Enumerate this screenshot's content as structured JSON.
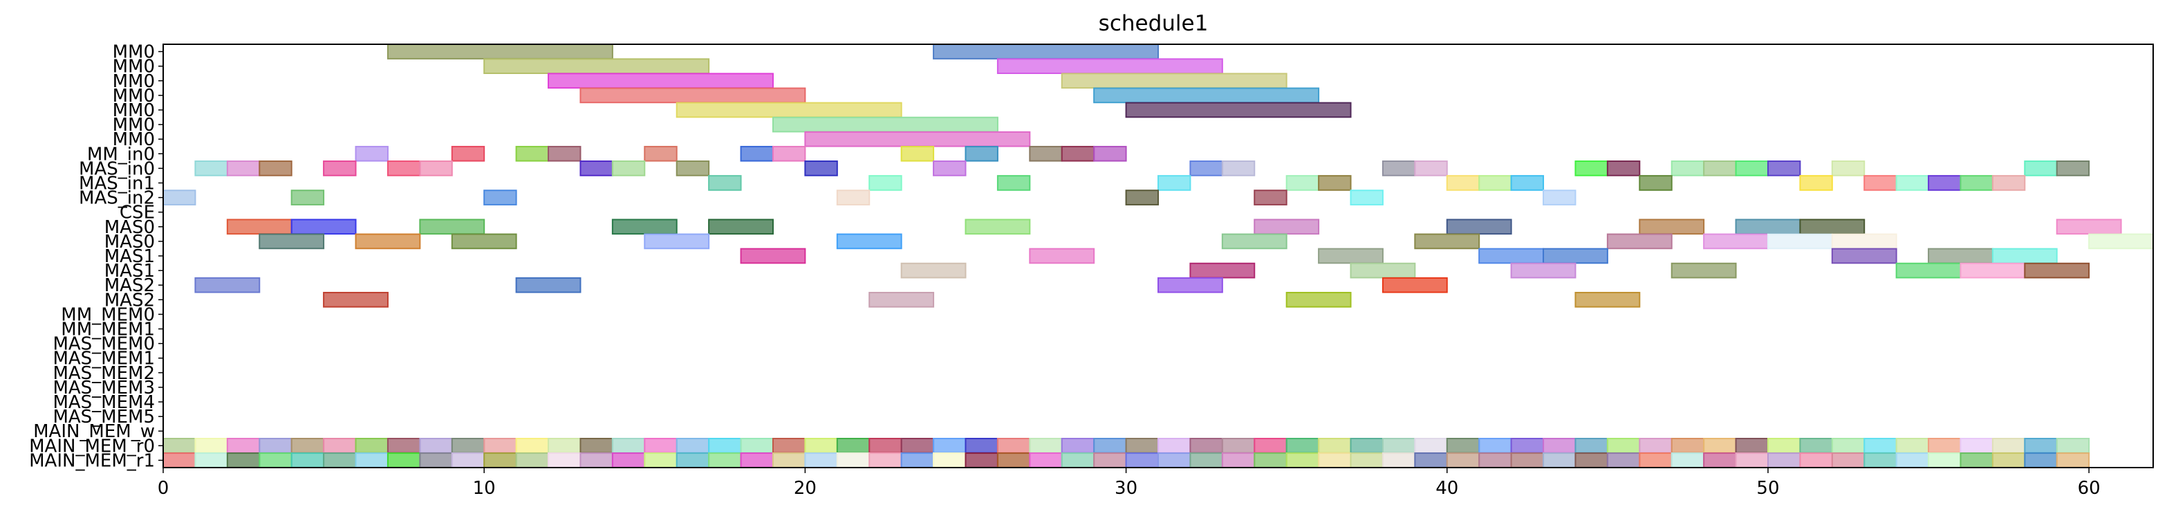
{
  "chart_data": {
    "type": "gantt",
    "title": "schedule1",
    "xlabel": "",
    "ylabel": "",
    "xlim": [
      0,
      62
    ],
    "x_ticks": [
      0,
      10,
      20,
      30,
      40,
      50,
      60
    ],
    "grid": false,
    "rows": [
      "MM0",
      "MM0",
      "MM0",
      "MM0",
      "MM0",
      "MM0",
      "MM0",
      "MM_in0",
      "MAS_in0",
      "MAS_in1",
      "MAS_in2",
      "CSE",
      "MAS0",
      "MAS0",
      "MAS1",
      "MAS1",
      "MAS2",
      "MAS2",
      "MM_MEM0",
      "MM_MEM1",
      "MAS_MEM0",
      "MAS_MEM1",
      "MAS_MEM2",
      "MAS_MEM3",
      "MAS_MEM4",
      "MAS_MEM5",
      "MAIN_MEM_w",
      "MAIN_MEM_r0",
      "MAIN_MEM_r1"
    ],
    "bars": [
      {
        "row": 0,
        "start": 7,
        "end": 14,
        "color": "#8e9a5b"
      },
      {
        "row": 0,
        "start": 24,
        "end": 31,
        "color": "#4f7fc8"
      },
      {
        "row": 1,
        "start": 10,
        "end": 17,
        "color": "#b5c06a"
      },
      {
        "row": 1,
        "start": 26,
        "end": 33,
        "color": "#d45ce8"
      },
      {
        "row": 2,
        "start": 12,
        "end": 19,
        "color": "#e040d8"
      },
      {
        "row": 2,
        "start": 28,
        "end": 35,
        "color": "#c8c878"
      },
      {
        "row": 3,
        "start": 13,
        "end": 20,
        "color": "#e86868"
      },
      {
        "row": 3,
        "start": 29,
        "end": 36,
        "color": "#40a0d0"
      },
      {
        "row": 4,
        "start": 16,
        "end": 23,
        "color": "#e0d860"
      },
      {
        "row": 4,
        "start": 30,
        "end": 37,
        "color": "#502858"
      },
      {
        "row": 5,
        "start": 19,
        "end": 26,
        "color": "#90e0a0"
      },
      {
        "row": 6,
        "start": 20,
        "end": 27,
        "color": "#e068c8"
      },
      {
        "row": 7,
        "start": 6,
        "end": 7,
        "color": "#b090f0"
      },
      {
        "row": 7,
        "start": 9,
        "end": 10,
        "color": "#e84860"
      },
      {
        "row": 7,
        "start": 11,
        "end": 12,
        "color": "#88d040"
      },
      {
        "row": 7,
        "start": 12,
        "end": 13,
        "color": "#985868"
      },
      {
        "row": 7,
        "start": 15,
        "end": 16,
        "color": "#d87060"
      },
      {
        "row": 7,
        "start": 18,
        "end": 19,
        "color": "#3868d8"
      },
      {
        "row": 7,
        "start": 19,
        "end": 20,
        "color": "#e878c0"
      },
      {
        "row": 7,
        "start": 23,
        "end": 24,
        "color": "#e0e040"
      },
      {
        "row": 7,
        "start": 25,
        "end": 26,
        "color": "#3890c0"
      },
      {
        "row": 7,
        "start": 27,
        "end": 28,
        "color": "#887860"
      },
      {
        "row": 7,
        "start": 28,
        "end": 29,
        "color": "#903050"
      },
      {
        "row": 7,
        "start": 29,
        "end": 30,
        "color": "#b050c0"
      },
      {
        "row": 8,
        "start": 1,
        "end": 2,
        "color": "#90d8d8"
      },
      {
        "row": 8,
        "start": 2,
        "end": 3,
        "color": "#d888d0"
      },
      {
        "row": 8,
        "start": 3,
        "end": 4,
        "color": "#a06840"
      },
      {
        "row": 8,
        "start": 5,
        "end": 6,
        "color": "#e84898"
      },
      {
        "row": 8,
        "start": 7,
        "end": 8,
        "color": "#f05078"
      },
      {
        "row": 8,
        "start": 8,
        "end": 9,
        "color": "#f088b0"
      },
      {
        "row": 8,
        "start": 13,
        "end": 14,
        "color": "#5028c8"
      },
      {
        "row": 8,
        "start": 14,
        "end": 15,
        "color": "#a0d890"
      },
      {
        "row": 8,
        "start": 16,
        "end": 17,
        "color": "#889058"
      },
      {
        "row": 8,
        "start": 20,
        "end": 21,
        "color": "#3030c0"
      },
      {
        "row": 8,
        "start": 24,
        "end": 25,
        "color": "#c070e0"
      },
      {
        "row": 8,
        "start": 32,
        "end": 33,
        "color": "#6080e0"
      },
      {
        "row": 8,
        "start": 33,
        "end": 34,
        "color": "#b8b8d8"
      },
      {
        "row": 8,
        "start": 38,
        "end": 39,
        "color": "#9090a0"
      },
      {
        "row": 8,
        "start": 39,
        "end": 40,
        "color": "#d8a8d0"
      },
      {
        "row": 8,
        "start": 44,
        "end": 45,
        "color": "#40f040"
      },
      {
        "row": 8,
        "start": 45,
        "end": 46,
        "color": "#782850"
      },
      {
        "row": 8,
        "start": 47,
        "end": 48,
        "color": "#98e8a8"
      },
      {
        "row": 8,
        "start": 48,
        "end": 49,
        "color": "#a0c888"
      },
      {
        "row": 8,
        "start": 49,
        "end": 50,
        "color": "#50e870"
      },
      {
        "row": 8,
        "start": 50,
        "end": 51,
        "color": "#5840c8"
      },
      {
        "row": 8,
        "start": 52,
        "end": 53,
        "color": "#d0e8a8"
      },
      {
        "row": 8,
        "start": 58,
        "end": 59,
        "color": "#60f0c0"
      },
      {
        "row": 8,
        "start": 59,
        "end": 60,
        "color": "#708068"
      },
      {
        "row": 9,
        "start": 17,
        "end": 18,
        "color": "#60c8a8"
      },
      {
        "row": 9,
        "start": 22,
        "end": 23,
        "color": "#80f8c8"
      },
      {
        "row": 9,
        "start": 26,
        "end": 27,
        "color": "#58d878"
      },
      {
        "row": 9,
        "start": 31,
        "end": 32,
        "color": "#60e0f0"
      },
      {
        "row": 9,
        "start": 35,
        "end": 36,
        "color": "#a0f0b8"
      },
      {
        "row": 9,
        "start": 36,
        "end": 37,
        "color": "#908040"
      },
      {
        "row": 9,
        "start": 40,
        "end": 41,
        "color": "#f8e070"
      },
      {
        "row": 9,
        "start": 41,
        "end": 42,
        "color": "#b8f090"
      },
      {
        "row": 9,
        "start": 42,
        "end": 43,
        "color": "#40c0f0"
      },
      {
        "row": 9,
        "start": 46,
        "end": 47,
        "color": "#608838"
      },
      {
        "row": 9,
        "start": 51,
        "end": 52,
        "color": "#f8e040"
      },
      {
        "row": 9,
        "start": 53,
        "end": 54,
        "color": "#f87878"
      },
      {
        "row": 9,
        "start": 54,
        "end": 55,
        "color": "#90f8d0"
      },
      {
        "row": 9,
        "start": 55,
        "end": 56,
        "color": "#6838d8"
      },
      {
        "row": 9,
        "start": 56,
        "end": 57,
        "color": "#60d870"
      },
      {
        "row": 9,
        "start": 57,
        "end": 58,
        "color": "#e8a8a8"
      },
      {
        "row": 10,
        "start": 0,
        "end": 1,
        "color": "#a0c0e8"
      },
      {
        "row": 10,
        "start": 4,
        "end": 5,
        "color": "#70c070"
      },
      {
        "row": 10,
        "start": 10,
        "end": 11,
        "color": "#4888e0"
      },
      {
        "row": 10,
        "start": 21,
        "end": 22,
        "color": "#f0d8c8"
      },
      {
        "row": 10,
        "start": 30,
        "end": 31,
        "color": "#585838"
      },
      {
        "row": 10,
        "start": 34,
        "end": 35,
        "color": "#984050"
      },
      {
        "row": 10,
        "start": 37,
        "end": 38,
        "color": "#70f0f0"
      },
      {
        "row": 10,
        "start": 43,
        "end": 44,
        "color": "#b0d0f8"
      },
      {
        "row": 12,
        "start": 2,
        "end": 4,
        "color": "#e05838"
      },
      {
        "row": 12,
        "start": 4,
        "end": 6,
        "color": "#3838e8"
      },
      {
        "row": 12,
        "start": 8,
        "end": 10,
        "color": "#58b858"
      },
      {
        "row": 12,
        "start": 14,
        "end": 16,
        "color": "#287848"
      },
      {
        "row": 12,
        "start": 17,
        "end": 19,
        "color": "#286838"
      },
      {
        "row": 12,
        "start": 25,
        "end": 27,
        "color": "#90e078"
      },
      {
        "row": 12,
        "start": 34,
        "end": 36,
        "color": "#c878c0"
      },
      {
        "row": 12,
        "start": 40,
        "end": 42,
        "color": "#405888"
      },
      {
        "row": 12,
        "start": 46,
        "end": 48,
        "color": "#b07840"
      },
      {
        "row": 12,
        "start": 49,
        "end": 51,
        "color": "#5090a8"
      },
      {
        "row": 12,
        "start": 51,
        "end": 53,
        "color": "#485830"
      },
      {
        "row": 12,
        "start": 59,
        "end": 61,
        "color": "#f088c8"
      },
      {
        "row": 13,
        "start": 3,
        "end": 5,
        "color": "#507870"
      },
      {
        "row": 13,
        "start": 6,
        "end": 8,
        "color": "#d08030"
      },
      {
        "row": 13,
        "start": 9,
        "end": 11,
        "color": "#709040"
      },
      {
        "row": 13,
        "start": 15,
        "end": 17,
        "color": "#90a8f8"
      },
      {
        "row": 13,
        "start": 21,
        "end": 23,
        "color": "#40a0f8"
      },
      {
        "row": 13,
        "start": 33,
        "end": 35,
        "color": "#88c890"
      },
      {
        "row": 13,
        "start": 39,
        "end": 41,
        "color": "#888848"
      },
      {
        "row": 13,
        "start": 45,
        "end": 47,
        "color": "#b87898"
      },
      {
        "row": 13,
        "start": 48,
        "end": 50,
        "color": "#e090e0"
      },
      {
        "row": 13,
        "start": 50,
        "end": 52,
        "color": "#e0f0f8"
      },
      {
        "row": 13,
        "start": 52,
        "end": 54,
        "color": "#f8f0e0"
      },
      {
        "row": 13,
        "start": 60,
        "end": 62,
        "color": "#e0f8d0"
      },
      {
        "row": 14,
        "start": 18,
        "end": 20,
        "color": "#d83098"
      },
      {
        "row": 14,
        "start": 27,
        "end": 29,
        "color": "#e878c8"
      },
      {
        "row": 14,
        "start": 36,
        "end": 38,
        "color": "#90a088"
      },
      {
        "row": 14,
        "start": 41,
        "end": 43,
        "color": "#5088e8"
      },
      {
        "row": 14,
        "start": 43,
        "end": 45,
        "color": "#4078d0"
      },
      {
        "row": 14,
        "start": 52,
        "end": 54,
        "color": "#7850b8"
      },
      {
        "row": 14,
        "start": 55,
        "end": 57,
        "color": "#889880"
      },
      {
        "row": 14,
        "start": 57,
        "end": 59,
        "color": "#70f0e0"
      },
      {
        "row": 15,
        "start": 23,
        "end": 25,
        "color": "#d0c0b0"
      },
      {
        "row": 15,
        "start": 32,
        "end": 34,
        "color": "#b02870"
      },
      {
        "row": 15,
        "start": 37,
        "end": 39,
        "color": "#a8d098"
      },
      {
        "row": 15,
        "start": 42,
        "end": 44,
        "color": "#c888d8"
      },
      {
        "row": 15,
        "start": 47,
        "end": 49,
        "color": "#889860"
      },
      {
        "row": 15,
        "start": 54,
        "end": 56,
        "color": "#58d870"
      },
      {
        "row": 15,
        "start": 56,
        "end": 58,
        "color": "#f8a0d0"
      },
      {
        "row": 15,
        "start": 58,
        "end": 60,
        "color": "#905030"
      },
      {
        "row": 16,
        "start": 1,
        "end": 3,
        "color": "#6878d0"
      },
      {
        "row": 16,
        "start": 11,
        "end": 13,
        "color": "#4070c0"
      },
      {
        "row": 16,
        "start": 31,
        "end": 33,
        "color": "#9050e8"
      },
      {
        "row": 16,
        "start": 38,
        "end": 40,
        "color": "#e83818"
      },
      {
        "row": 17,
        "start": 5,
        "end": 7,
        "color": "#c04030"
      },
      {
        "row": 17,
        "start": 22,
        "end": 24,
        "color": "#c8a0b0"
      },
      {
        "row": 17,
        "start": 35,
        "end": 37,
        "color": "#a0c020"
      },
      {
        "row": 17,
        "start": 44,
        "end": 46,
        "color": "#c09030"
      }
    ],
    "mem_rows": [
      {
        "row": 27,
        "colors": [
          "#a8c888",
          "#f0f8b0",
          "#e878c8",
          "#9898d8",
          "#a89068",
          "#e888a8",
          "#88c850",
          "#985060",
          "#b0a0d8",
          "#788878",
          "#e89898",
          "#f8f080",
          "#d0e8a8",
          "#786848",
          "#a0d8c8",
          "#f070c8",
          "#80b8e8",
          "#50d8f0",
          "#98e8b8",
          "#c05848",
          "#d0f070",
          "#40b048",
          "#c03858",
          "#903858",
          "#60a0f8",
          "#3838c8",
          "#e87878",
          "#c0e8b8",
          "#9878e0",
          "#5890d8",
          "#887860",
          "#d8b0f0",
          "#a06080",
          "#b08898",
          "#e84888",
          "#48b870",
          "#d0e078",
          "#58b098",
          "#a0d0b8",
          "#e0d8e8",
          "#6c8868",
          "#68a0f8",
          "#7858d8",
          "#c870d0",
          "#58a0c0",
          "#a8e870",
          "#d898c8",
          "#d89060",
          "#e8b870",
          "#805058",
          "#c8f078",
          "#68b890",
          "#a8e8a8",
          "#60e0f0",
          "#c8e8a0",
          "#f0a080",
          "#e8c8f8",
          "#e0e0b8",
          "#50a8d0",
          "#a8e0b0"
        ]
      },
      {
        "row": 28,
        "colors": [
          "#e86868",
          "#b8f0d8",
          "#507848",
          "#60d870",
          "#48c8b0",
          "#60a888",
          "#80d0e8",
          "#40d830",
          "#808090",
          "#c8b8e0",
          "#a0a038",
          "#a8c888",
          "#f0d8e8",
          "#c090c0",
          "#d848c8",
          "#c8f080",
          "#50b8c8",
          "#80e080",
          "#e048c8",
          "#d8c888",
          "#a8d0f0",
          "#f0f0e0",
          "#f0a0b8",
          "#6090e8",
          "#f8f8c8",
          "#882040",
          "#a85828",
          "#e860d0",
          "#80d0b0",
          "#c08098",
          "#6870e0",
          "#8898e8",
          "#78a890",
          "#d080c0",
          "#78c060",
          "#b0e060",
          "#f0e098",
          "#c8d890",
          "#e8e0d8",
          "#6070b0",
          "#c09880",
          "#b07890",
          "#a87070",
          "#a0b0d0",
          "#805850",
          "#9078a8",
          "#f07860",
          "#b8e8e0",
          "#c85890",
          "#e8a0c0",
          "#b898d0",
          "#f088a8",
          "#d88898",
          "#60c8b8",
          "#a0d8f0",
          "#c8f8c8",
          "#68c060",
          "#c8c868",
          "#4088c8",
          "#e0b070"
        ]
      }
    ]
  }
}
